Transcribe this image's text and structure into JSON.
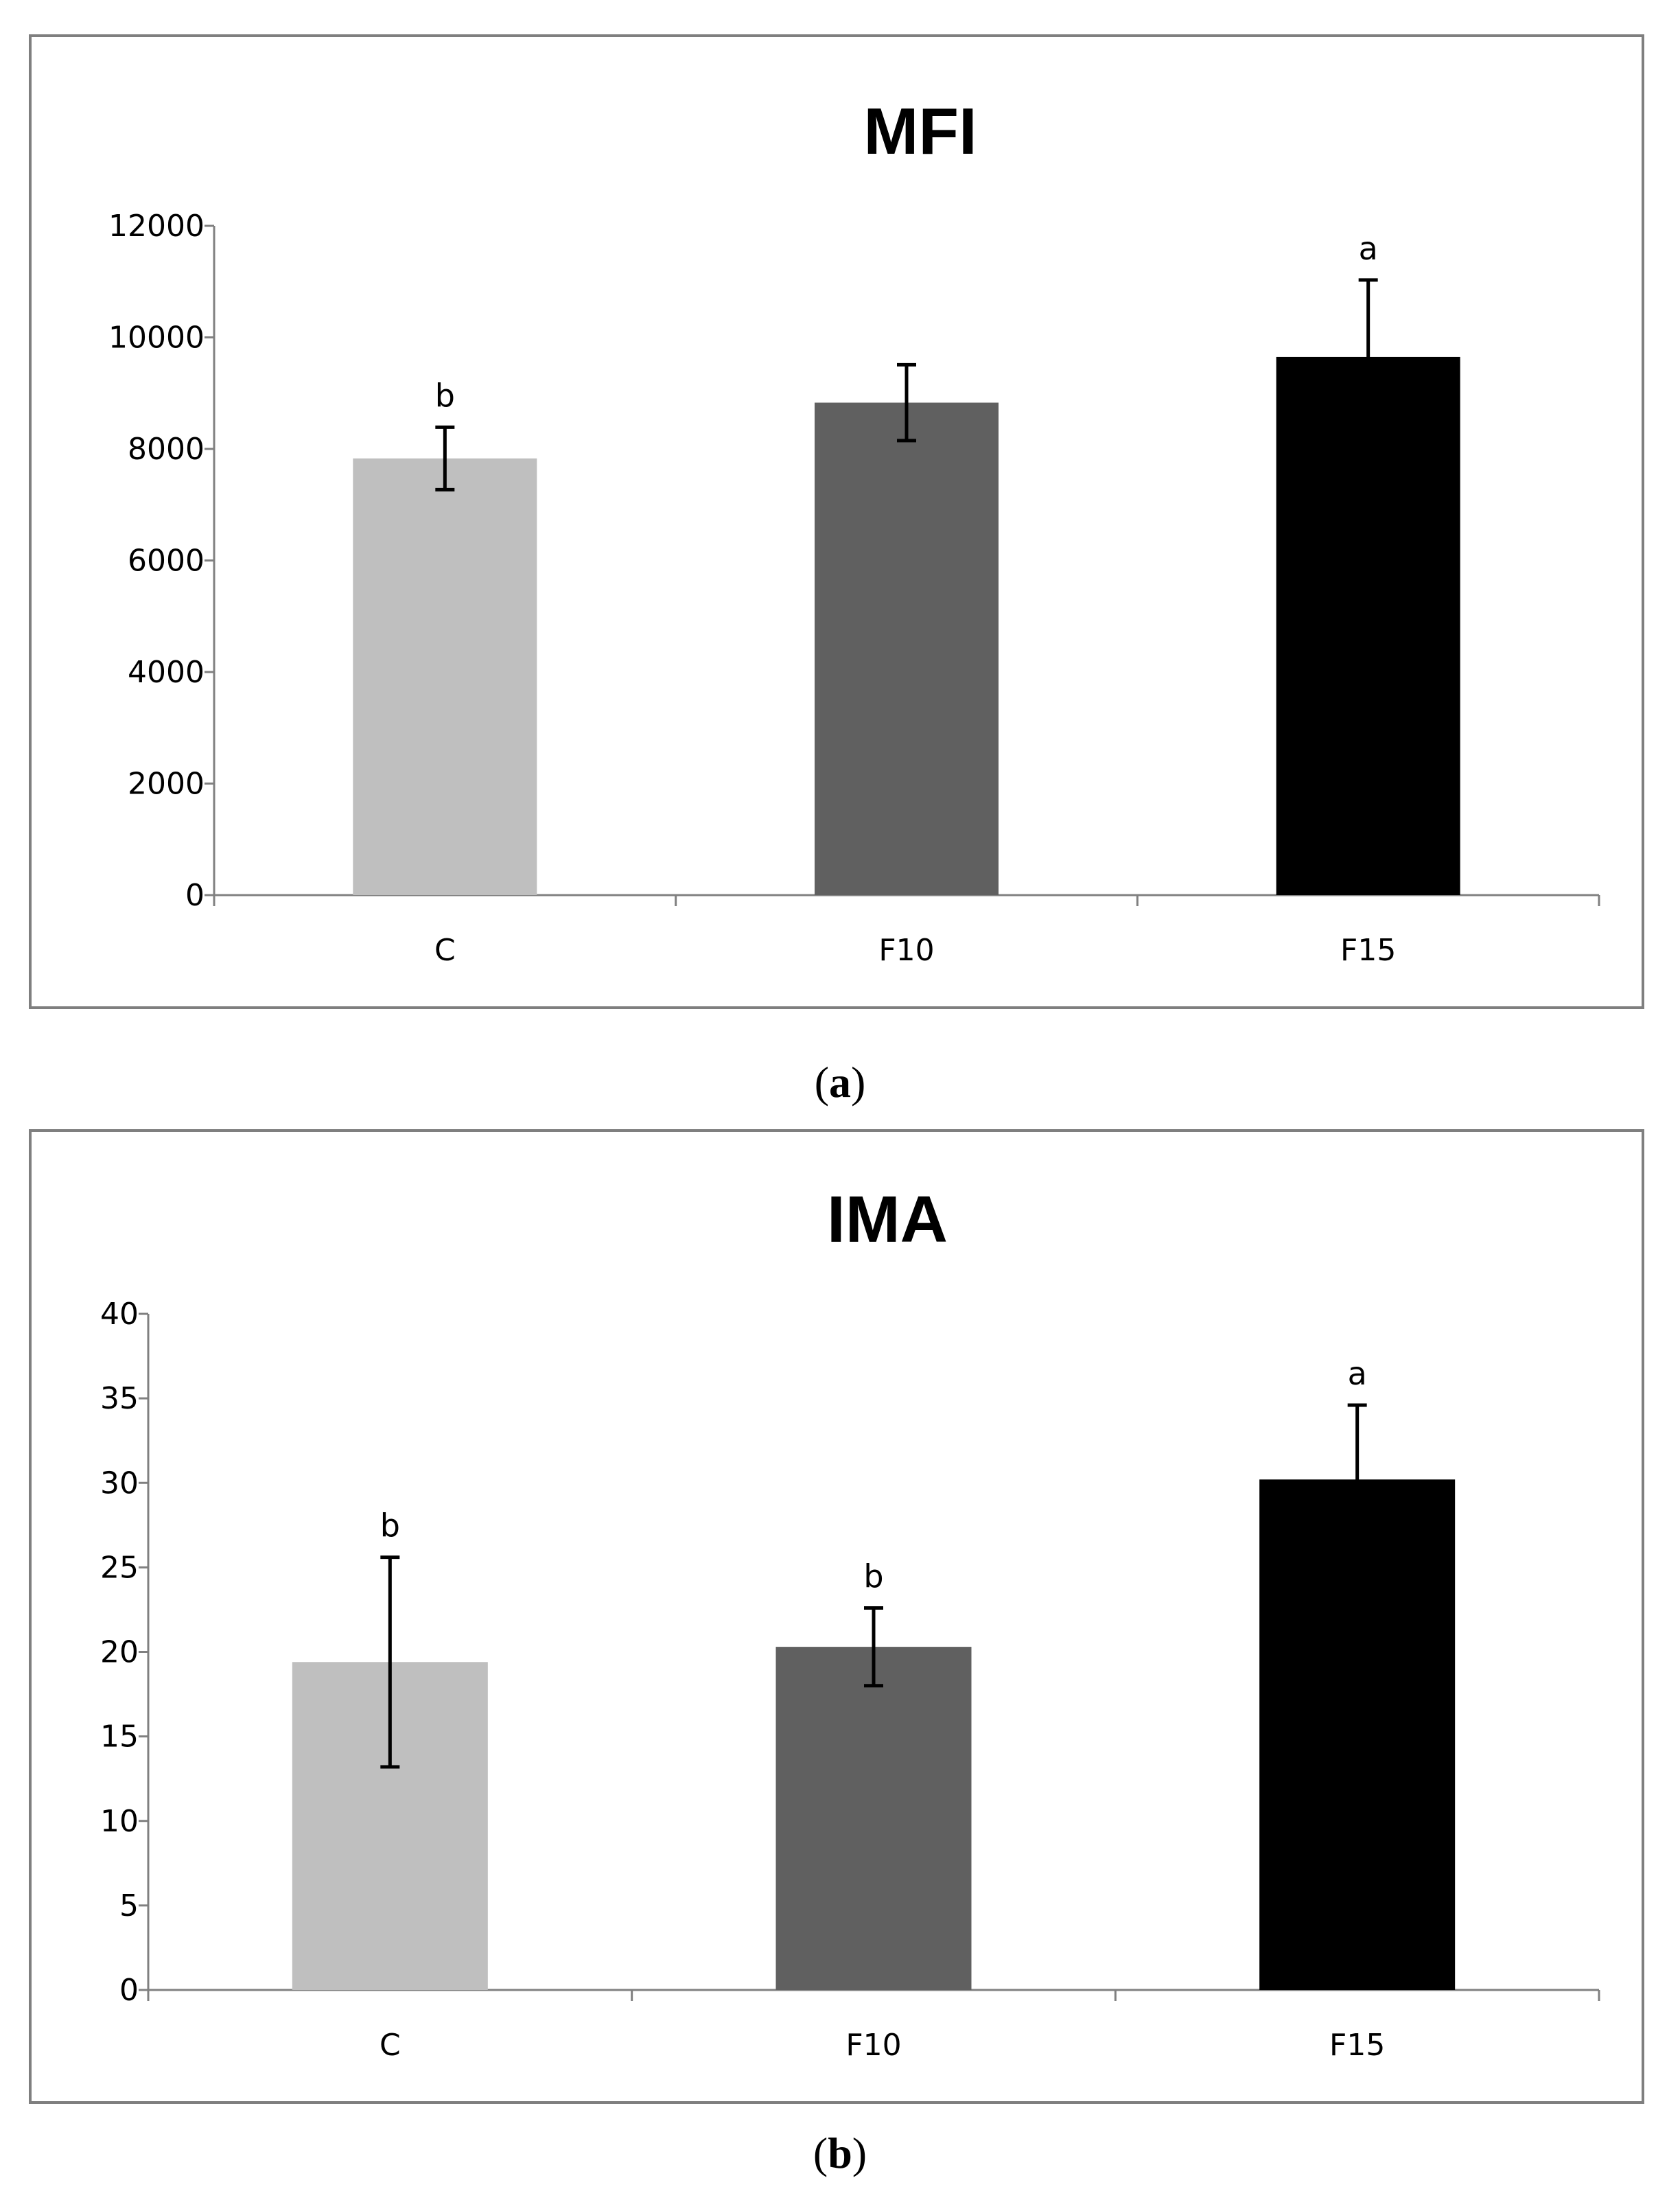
{
  "chart_data": [
    {
      "type": "bar",
      "title": "MFI",
      "categories": [
        "C",
        "F10",
        "F15"
      ],
      "values": [
        7830,
        8830,
        9650
      ],
      "errors": [
        560,
        680,
        1380
      ],
      "significance": [
        "b",
        "",
        "a"
      ],
      "colors": [
        "#bfbfbf",
        "#606060",
        "#000000"
      ],
      "ylim": [
        0,
        12000
      ],
      "yticks": [
        0,
        2000,
        4000,
        6000,
        8000,
        10000,
        12000
      ],
      "xlabel": "",
      "ylabel": "",
      "grid": false,
      "caption_letter": "a"
    },
    {
      "type": "bar",
      "title": "IMA",
      "categories": [
        "C",
        "F10",
        "F15"
      ],
      "values": [
        19.4,
        20.3,
        30.2
      ],
      "errors": [
        6.2,
        2.3,
        4.4
      ],
      "significance": [
        "b",
        "b",
        "a"
      ],
      "colors": [
        "#bfbfbf",
        "#606060",
        "#000000"
      ],
      "ylim": [
        0,
        40
      ],
      "yticks": [
        0,
        5,
        10,
        15,
        20,
        25,
        30,
        35,
        40
      ],
      "xlabel": "",
      "ylabel": "",
      "grid": false,
      "caption_letter": "b"
    }
  ],
  "captions": {
    "a": {
      "open": "(",
      "letter": "a",
      "close": ")"
    },
    "b": {
      "open": "(",
      "letter": "b",
      "close": ")"
    }
  }
}
